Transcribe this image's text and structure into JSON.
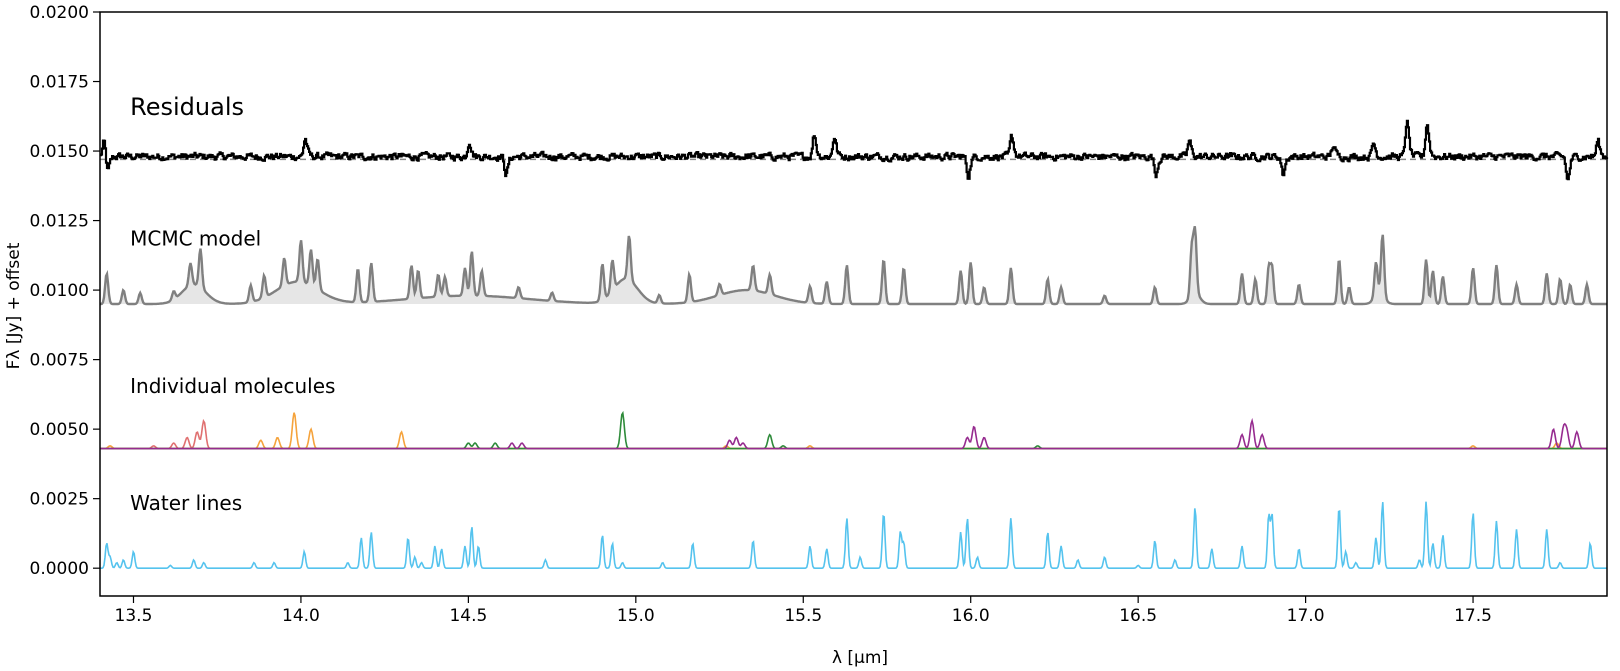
{
  "chart_data": {
    "type": "line",
    "xlabel": "λ [μm]",
    "ylabel": "Fλ [Jy] + offset",
    "xlim": [
      13.4,
      17.9
    ],
    "ylim": [
      -0.001,
      0.02
    ],
    "x_ticks": [
      13.5,
      14.0,
      14.5,
      15.0,
      15.5,
      16.0,
      16.5,
      17.0,
      17.5
    ],
    "x_tick_labels": [
      "13.5",
      "14.0",
      "14.5",
      "15.0",
      "15.5",
      "16.0",
      "16.5",
      "17.0",
      "17.5"
    ],
    "y_ticks": [
      0.0,
      0.0025,
      0.005,
      0.0075,
      0.01,
      0.0125,
      0.015,
      0.0175,
      0.02
    ],
    "y_tick_labels": [
      "0.0000",
      "0.0025",
      "0.0050",
      "0.0075",
      "0.0100",
      "0.0125",
      "0.0150",
      "0.0175",
      "0.0200"
    ],
    "grid": false,
    "annotations": [
      {
        "text": "Residuals",
        "x": 13.49,
        "y": 0.0163,
        "size": "large"
      },
      {
        "text": "MCMC model",
        "x": 13.49,
        "y": 0.0116,
        "size": "normal"
      },
      {
        "text": "Individual molecules",
        "x": 13.49,
        "y": 0.0063,
        "size": "normal"
      },
      {
        "text": "Water lines",
        "x": 13.49,
        "y": 0.0021,
        "size": "normal"
      }
    ],
    "panels": [
      {
        "id": "residuals",
        "baseline": 0.0148,
        "color": "#000000",
        "style": "noisy-step",
        "noise_amplitude": 0.0003,
        "reference_line": {
          "y": 0.0147,
          "color": "#888888",
          "dash": "dashed"
        },
        "features": [
          [
            13.41,
            0.0155
          ],
          [
            13.42,
            0.014
          ],
          [
            14.01,
            0.0156
          ],
          [
            14.5,
            0.0155
          ],
          [
            14.61,
            0.014
          ],
          [
            15.53,
            0.0158
          ],
          [
            15.59,
            0.0157
          ],
          [
            15.99,
            0.0139
          ],
          [
            16.12,
            0.0157
          ],
          [
            16.55,
            0.014
          ],
          [
            16.65,
            0.0155
          ],
          [
            16.93,
            0.014
          ],
          [
            17.08,
            0.0153
          ],
          [
            17.2,
            0.0154
          ],
          [
            17.3,
            0.0164
          ],
          [
            17.36,
            0.0163
          ],
          [
            17.78,
            0.0137
          ],
          [
            17.87,
            0.0155
          ]
        ]
      },
      {
        "id": "mcmc",
        "baseline": 0.0095,
        "color": "#808080",
        "fill": "#e6e6e6",
        "lines": [
          [
            13.42,
            0.0106
          ],
          [
            13.47,
            0.01
          ],
          [
            13.52,
            0.0099
          ],
          [
            13.62,
            0.0098
          ],
          [
            13.67,
            0.0103
          ],
          [
            13.7,
            0.0109
          ],
          [
            13.85,
            0.0101
          ],
          [
            13.89,
            0.0103
          ],
          [
            13.95,
            0.0105
          ],
          [
            14.0,
            0.011
          ],
          [
            14.03,
            0.0108
          ],
          [
            14.05,
            0.0106
          ],
          [
            14.17,
            0.0107
          ],
          [
            14.21,
            0.0109
          ],
          [
            14.33,
            0.0107
          ],
          [
            14.35,
            0.0105
          ],
          [
            14.41,
            0.0103
          ],
          [
            14.43,
            0.0102
          ],
          [
            14.49,
            0.0105
          ],
          [
            14.51,
            0.0111
          ],
          [
            14.54,
            0.0104
          ],
          [
            14.65,
            0.0099
          ],
          [
            14.75,
            0.0098
          ],
          [
            14.9,
            0.0108
          ],
          [
            14.93,
            0.0106
          ],
          [
            14.98,
            0.0111
          ],
          [
            15.07,
            0.0098
          ],
          [
            15.16,
            0.0105
          ],
          [
            15.25,
            0.0099
          ],
          [
            15.35,
            0.0104
          ],
          [
            15.4,
            0.0102
          ],
          [
            15.52,
            0.0101
          ],
          [
            15.57,
            0.0103
          ],
          [
            15.63,
            0.0109
          ],
          [
            15.74,
            0.0111
          ],
          [
            15.8,
            0.0108
          ],
          [
            15.97,
            0.0107
          ],
          [
            16.0,
            0.011
          ],
          [
            16.04,
            0.0101
          ],
          [
            16.12,
            0.0108
          ],
          [
            16.23,
            0.0104
          ],
          [
            16.27,
            0.0101
          ],
          [
            16.4,
            0.0098
          ],
          [
            16.55,
            0.0101
          ],
          [
            16.67,
            0.0117
          ],
          [
            16.66,
            0.0112
          ],
          [
            16.81,
            0.0106
          ],
          [
            16.85,
            0.0104
          ],
          [
            16.89,
            0.0108
          ],
          [
            16.9,
            0.0108
          ],
          [
            16.98,
            0.0102
          ],
          [
            17.1,
            0.0111
          ],
          [
            17.13,
            0.0101
          ],
          [
            17.21,
            0.0107
          ],
          [
            17.23,
            0.0117
          ],
          [
            17.36,
            0.0111
          ],
          [
            17.38,
            0.0107
          ],
          [
            17.41,
            0.0105
          ],
          [
            17.5,
            0.0108
          ],
          [
            17.57,
            0.0109
          ],
          [
            17.63,
            0.0102
          ],
          [
            17.72,
            0.0106
          ],
          [
            17.76,
            0.0104
          ],
          [
            17.79,
            0.0102
          ],
          [
            17.84,
            0.0102
          ]
        ],
        "bumps": [
          [
            13.68,
            0.0007,
            0.05
          ],
          [
            13.99,
            0.0008,
            0.09
          ],
          [
            14.5,
            0.0003,
            0.25
          ],
          [
            14.97,
            0.0009,
            0.05
          ],
          [
            15.33,
            0.0005,
            0.12
          ],
          [
            16.67,
            0.0004,
            0.02
          ],
          [
            17.22,
            0.0004,
            0.02
          ]
        ]
      },
      {
        "id": "molecules",
        "baseline": 0.0043,
        "series": [
          {
            "color": "#e07070",
            "lines": [
              [
                13.66,
                0.0047
              ],
              [
                13.69,
                0.0049
              ],
              [
                13.71,
                0.0053
              ],
              [
                13.62,
                0.0045
              ],
              [
                13.56,
                0.0044
              ]
            ]
          },
          {
            "color": "#f5a33c",
            "lines": [
              [
                13.43,
                0.0044
              ],
              [
                13.88,
                0.0046
              ],
              [
                13.93,
                0.0047
              ],
              [
                13.98,
                0.0056
              ],
              [
                14.03,
                0.005
              ],
              [
                14.3,
                0.0049
              ],
              [
                15.27,
                0.0044
              ],
              [
                15.52,
                0.0044
              ],
              [
                17.5,
                0.0044
              ],
              [
                17.75,
                0.0045
              ]
            ]
          },
          {
            "color": "#2e8b3a",
            "lines": [
              [
                14.5,
                0.0045
              ],
              [
                14.52,
                0.0045
              ],
              [
                14.58,
                0.0045
              ],
              [
                14.96,
                0.0056
              ],
              [
                15.4,
                0.0048
              ],
              [
                15.44,
                0.0044
              ],
              [
                16.2,
                0.0044
              ]
            ]
          },
          {
            "color": "#962b8f",
            "lines": [
              [
                14.63,
                0.0045
              ],
              [
                14.66,
                0.0045
              ],
              [
                15.28,
                0.0046
              ],
              [
                15.3,
                0.0047
              ],
              [
                15.32,
                0.0045
              ],
              [
                15.99,
                0.0047
              ],
              [
                16.01,
                0.0051
              ],
              [
                16.04,
                0.0047
              ],
              [
                16.81,
                0.0048
              ],
              [
                16.84,
                0.0053
              ],
              [
                16.87,
                0.0048
              ],
              [
                17.74,
                0.005
              ],
              [
                17.77,
                0.005
              ],
              [
                17.78,
                0.0049
              ],
              [
                17.81,
                0.0049
              ]
            ]
          }
        ]
      },
      {
        "id": "water",
        "baseline": 0.0,
        "color": "#55c3ee",
        "lines": [
          [
            13.42,
            0.0009
          ],
          [
            13.43,
            0.0004
          ],
          [
            13.45,
            0.0002
          ],
          [
            13.47,
            0.0003
          ],
          [
            13.5,
            0.0006
          ],
          [
            13.61,
            0.0001
          ],
          [
            13.68,
            0.0003
          ],
          [
            13.71,
            0.0002
          ],
          [
            13.86,
            0.0002
          ],
          [
            13.92,
            0.0002
          ],
          [
            14.01,
            0.0006
          ],
          [
            14.14,
            0.0002
          ],
          [
            14.18,
            0.0011
          ],
          [
            14.21,
            0.0013
          ],
          [
            14.32,
            0.0011
          ],
          [
            14.34,
            0.0004
          ],
          [
            14.36,
            0.0002
          ],
          [
            14.4,
            0.0008
          ],
          [
            14.42,
            0.0007
          ],
          [
            14.49,
            0.0008
          ],
          [
            14.51,
            0.0015
          ],
          [
            14.53,
            0.0008
          ],
          [
            14.73,
            0.0003
          ],
          [
            14.9,
            0.0012
          ],
          [
            14.93,
            0.0009
          ],
          [
            14.96,
            0.0002
          ],
          [
            15.08,
            0.0002
          ],
          [
            15.17,
            0.0009
          ],
          [
            15.35,
            0.001
          ],
          [
            15.52,
            0.0008
          ],
          [
            15.57,
            0.0007
          ],
          [
            15.63,
            0.0018
          ],
          [
            15.67,
            0.0004
          ],
          [
            15.74,
            0.002
          ],
          [
            15.79,
            0.0013
          ],
          [
            15.8,
            0.0009
          ],
          [
            15.97,
            0.0013
          ],
          [
            15.99,
            0.0018
          ],
          [
            16.02,
            0.0004
          ],
          [
            16.12,
            0.0018
          ],
          [
            16.23,
            0.0013
          ],
          [
            16.27,
            0.0008
          ],
          [
            16.32,
            0.0003
          ],
          [
            16.4,
            0.0004
          ],
          [
            16.5,
            0.0001
          ],
          [
            16.55,
            0.001
          ],
          [
            16.61,
            0.0003
          ],
          [
            16.67,
            0.0022
          ],
          [
            16.72,
            0.0007
          ],
          [
            16.81,
            0.0008
          ],
          [
            16.89,
            0.0019
          ],
          [
            16.9,
            0.0019
          ],
          [
            16.98,
            0.0007
          ],
          [
            17.1,
            0.0022
          ],
          [
            17.12,
            0.0006
          ],
          [
            17.15,
            0.0002
          ],
          [
            17.21,
            0.0011
          ],
          [
            17.23,
            0.0024
          ],
          [
            17.34,
            0.0003
          ],
          [
            17.36,
            0.0024
          ],
          [
            17.38,
            0.0009
          ],
          [
            17.41,
            0.0012
          ],
          [
            17.5,
            0.002
          ],
          [
            17.57,
            0.0017
          ],
          [
            17.63,
            0.0014
          ],
          [
            17.72,
            0.0014
          ],
          [
            17.76,
            0.0002
          ],
          [
            17.85,
            0.0009
          ]
        ]
      }
    ]
  }
}
